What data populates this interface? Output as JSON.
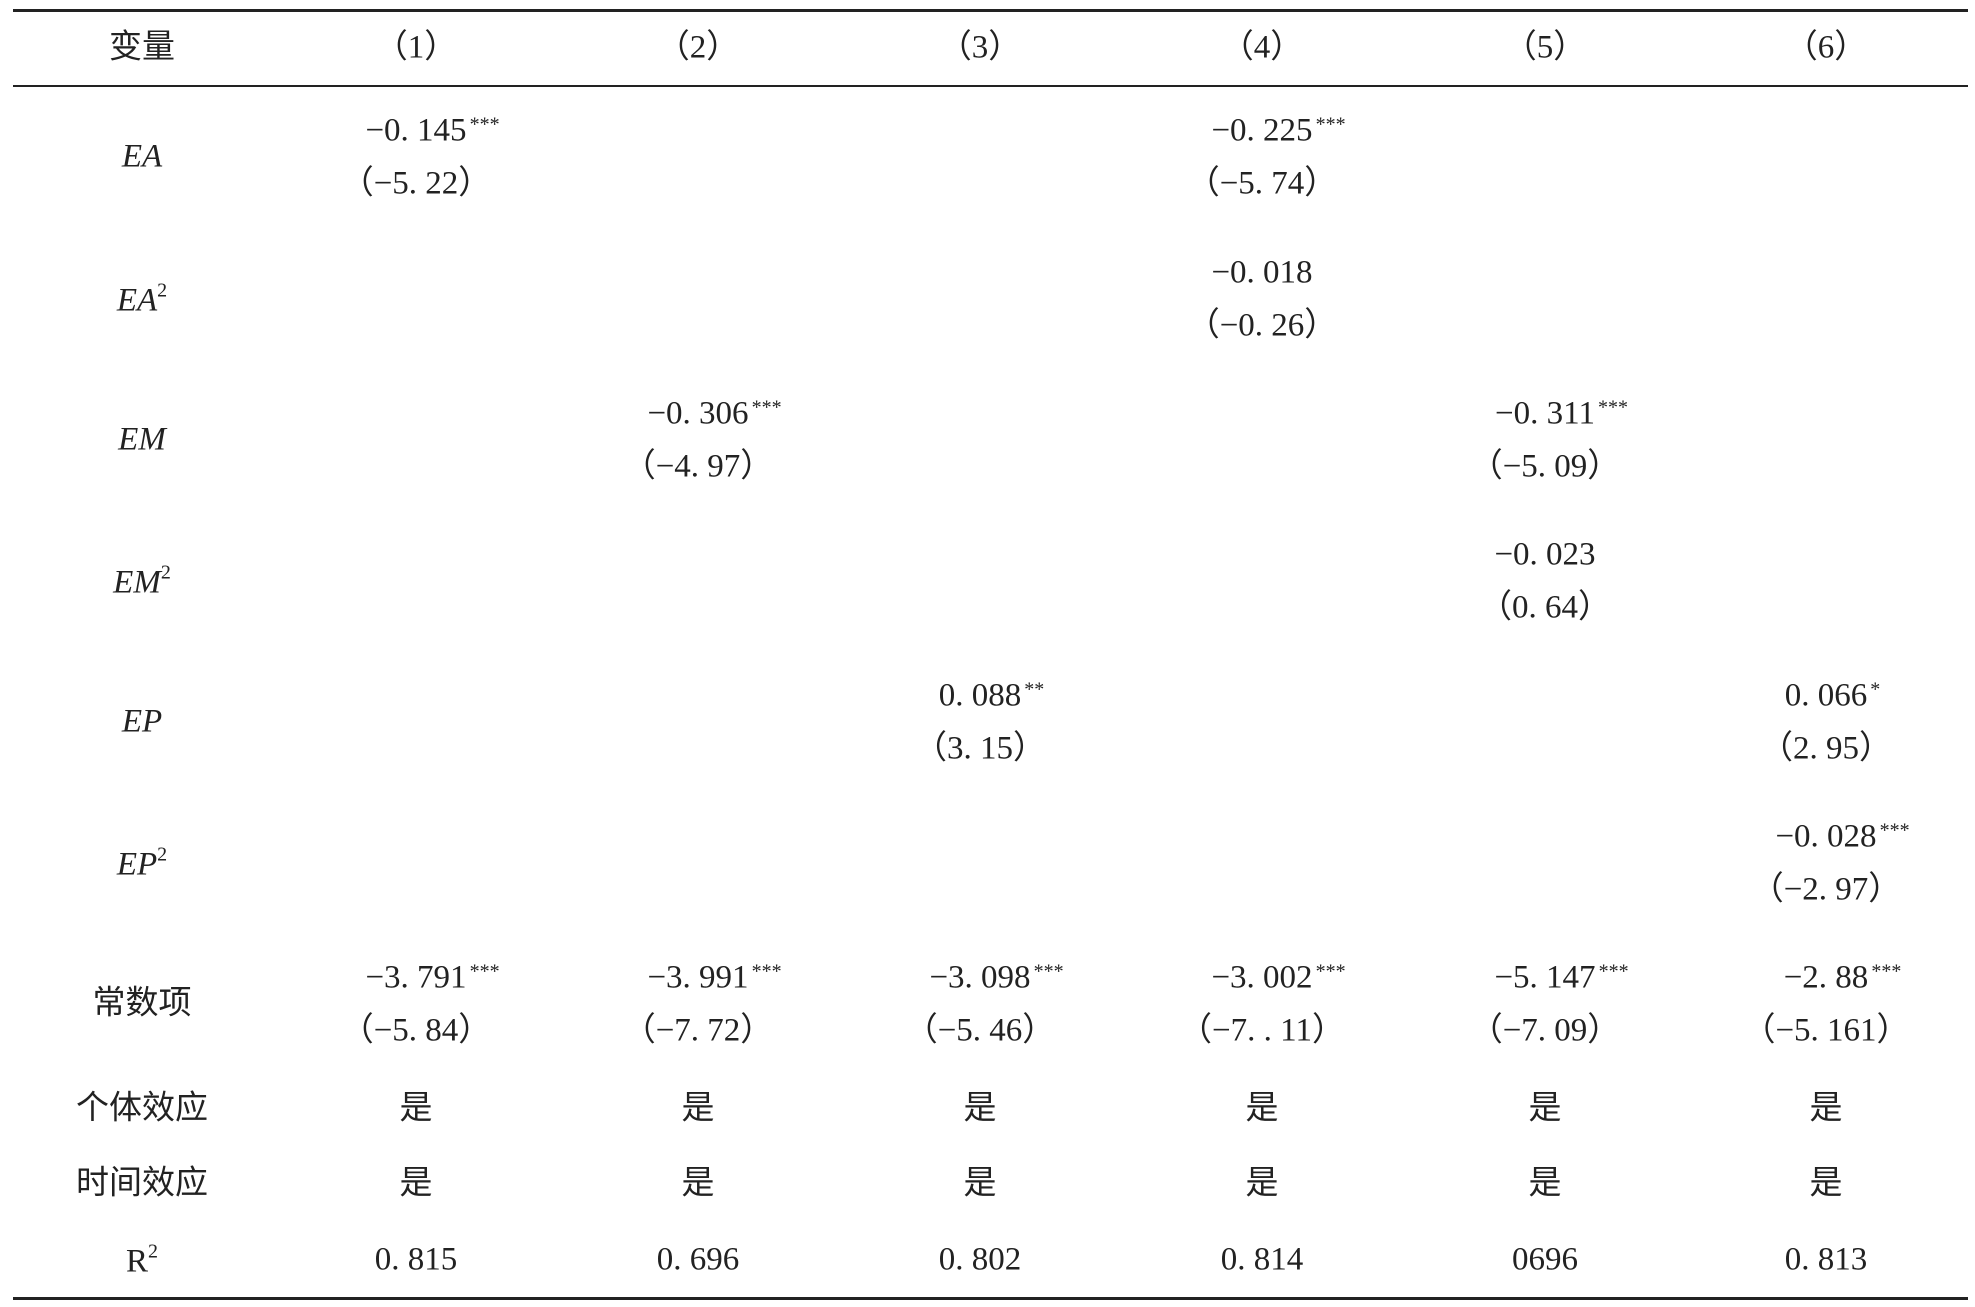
{
  "table": {
    "header": [
      "变量",
      "（1）",
      "（2）",
      "（3）",
      "（4）",
      "（5）",
      "（6）"
    ],
    "rows": [
      {
        "label": {
          "text": "EA",
          "italic": true
        },
        "cells": [
          {
            "coef": "−0. 145",
            "stars": "***",
            "t": "（−5. 22）"
          },
          null,
          null,
          {
            "coef": "−0. 225",
            "stars": "***",
            "t": "（−5. 74）"
          },
          null,
          null
        ]
      },
      {
        "label": {
          "text": "EA",
          "sup": "2",
          "italic": true
        },
        "cells": [
          null,
          null,
          null,
          {
            "coef": "−0. 018",
            "t": "（−0. 26）"
          },
          null,
          null
        ]
      },
      {
        "label": {
          "text": "EM",
          "italic": true
        },
        "cells": [
          null,
          {
            "coef": "−0. 306",
            "stars": "***",
            "t": "（−4. 97）"
          },
          null,
          null,
          {
            "coef": "−0. 311",
            "stars": "***",
            "t": "（−5. 09）"
          },
          null
        ]
      },
      {
        "label": {
          "text": "EM",
          "sup": "2",
          "italic": true
        },
        "cells": [
          null,
          null,
          null,
          null,
          {
            "coef": "−0. 023",
            "t": "（0. 64）"
          },
          null
        ]
      },
      {
        "label": {
          "text": "EP",
          "italic": true
        },
        "cells": [
          null,
          null,
          {
            "coef": "0. 088",
            "stars": "**",
            "t": "（3. 15）"
          },
          null,
          null,
          {
            "coef": "0. 066",
            "stars": "*",
            "t": "（2. 95）"
          }
        ]
      },
      {
        "label": {
          "text": "EP",
          "sup": "2",
          "italic": true
        },
        "cells": [
          null,
          null,
          null,
          null,
          null,
          {
            "coef": "−0. 028",
            "stars": "***",
            "t": "（−2. 97）"
          }
        ]
      },
      {
        "label": {
          "text": "常数项"
        },
        "cells": [
          {
            "coef": "−3. 791",
            "stars": "***",
            "t": "（−5. 84）"
          },
          {
            "coef": "−3. 991",
            "stars": "***",
            "t": "（−7. 72）"
          },
          {
            "coef": "−3. 098",
            "stars": "***",
            "t": "（−5. 46）"
          },
          {
            "coef": "−3. 002",
            "stars": "***",
            "t": "（−7. . 11）"
          },
          {
            "coef": "−5. 147",
            "stars": "***",
            "t": "（−7. 09）"
          },
          {
            "coef": "−2. 88",
            "stars": "***",
            "t": "（−5. 161）"
          }
        ]
      },
      {
        "label": {
          "text": "个体效应"
        },
        "cells": [
          "是",
          "是",
          "是",
          "是",
          "是",
          "是"
        ]
      },
      {
        "label": {
          "text": "时间效应"
        },
        "cells": [
          "是",
          "是",
          "是",
          "是",
          "是",
          "是"
        ]
      },
      {
        "label": {
          "text": "R",
          "sup": "2"
        },
        "cells": [
          "0. 815",
          "0. 696",
          "0. 802",
          "0. 814",
          "0696",
          "0. 813"
        ]
      }
    ]
  }
}
